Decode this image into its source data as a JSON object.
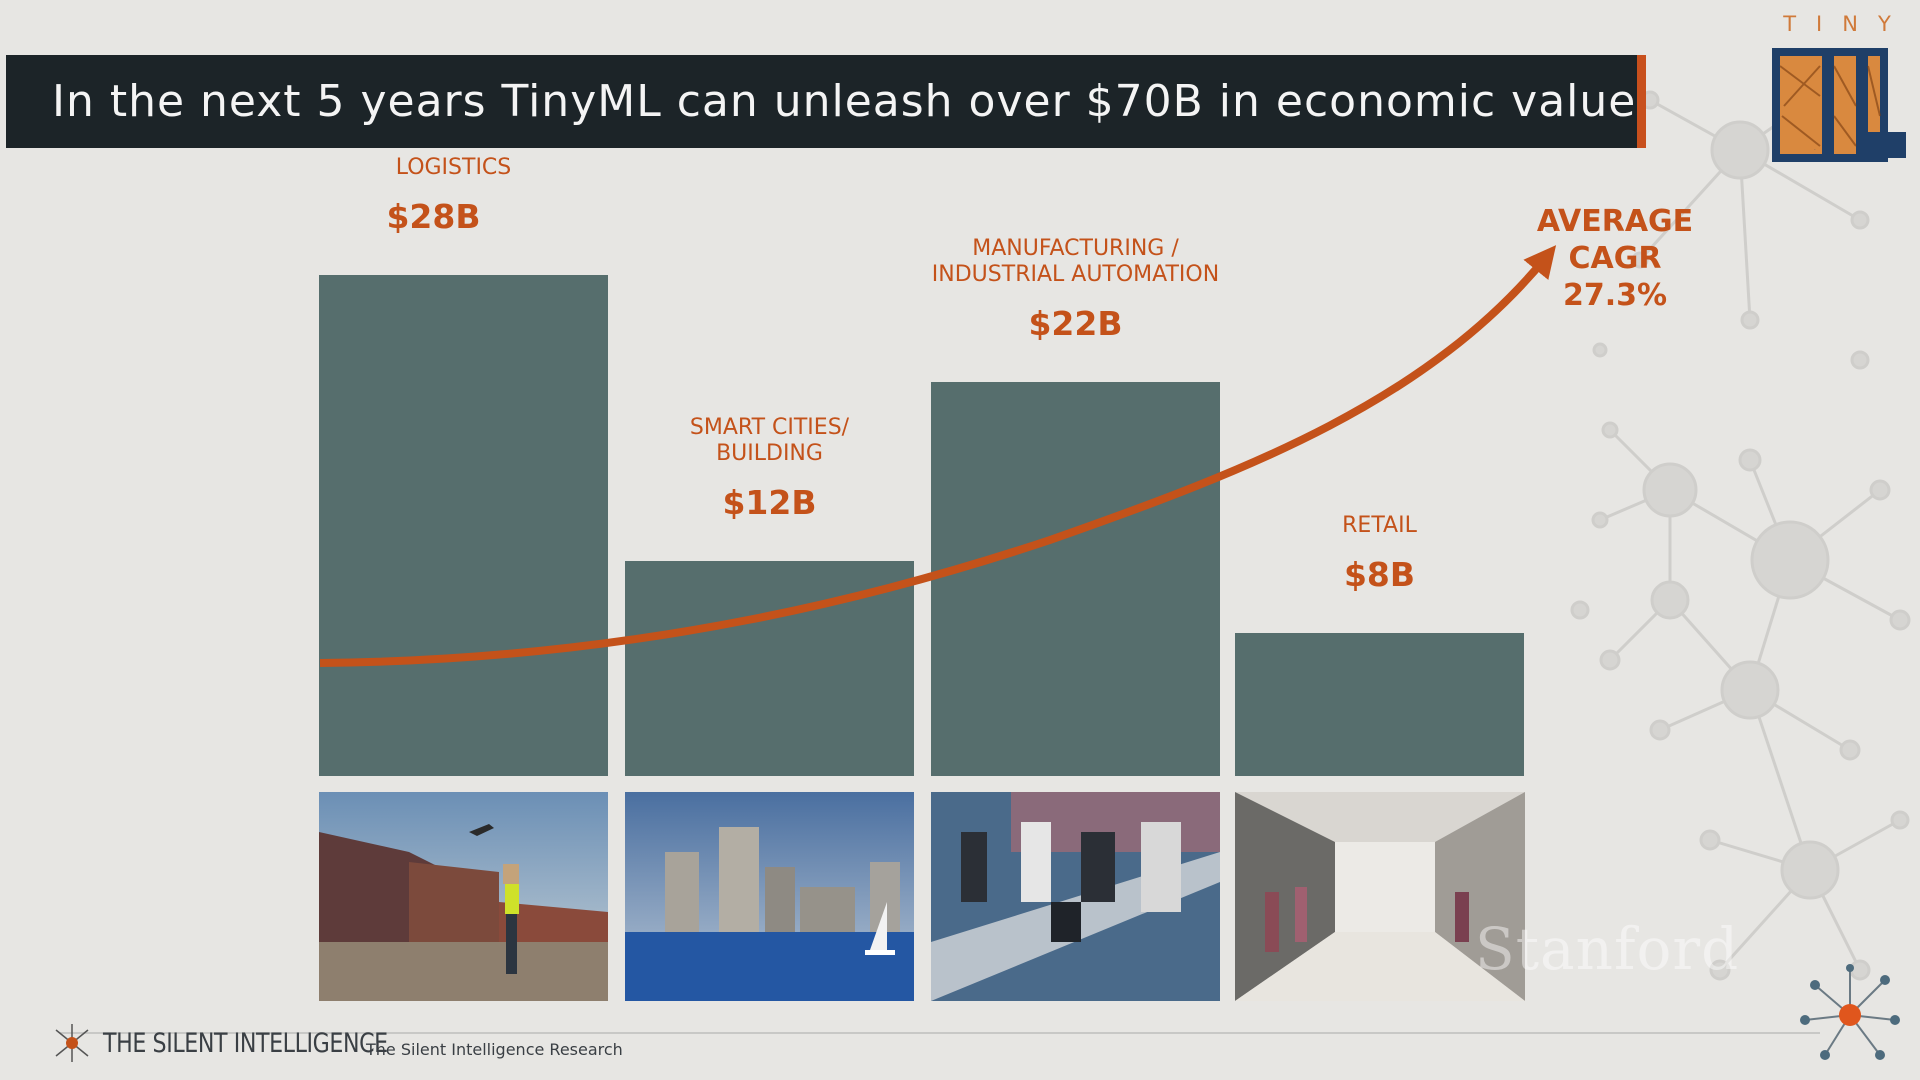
{
  "title": "In the next 5 years TinyML can unleash over $70B in economic value",
  "logo": {
    "small_text": "TINY",
    "large_text": "ML"
  },
  "colors": {
    "accent": "#c4521a",
    "bar": "#566e6d",
    "title_bg": "#1c2428",
    "background": "#e7e6e3"
  },
  "chart_data": {
    "type": "bar",
    "categories": [
      "LOGISTICS",
      "SMART CITIES/ BUILDING",
      "MANUFACTURING / INDUSTRIAL AUTOMATION",
      "RETAIL"
    ],
    "label_lines": [
      [
        "LOGISTICS"
      ],
      [
        "SMART CITIES/",
        "BUILDING"
      ],
      [
        "MANUFACTURING /",
        "INDUSTRIAL AUTOMATION"
      ],
      [
        "RETAIL"
      ]
    ],
    "values": [
      28,
      12,
      22,
      8
    ],
    "value_labels": [
      "$28B",
      "$12B",
      "$22B",
      "$8B"
    ],
    "annotation": {
      "lines": [
        "AVERAGE",
        "CAGR",
        "27.3%"
      ]
    }
  },
  "photos": [
    "logistics-photo",
    "city-skyline-photo",
    "factory-photo",
    "retail-store-photo"
  ],
  "footer": {
    "brand": "THE SILENT INTELLIGENCE",
    "credit": "The Silent Intelligence Research"
  },
  "watermark": "Stanford"
}
